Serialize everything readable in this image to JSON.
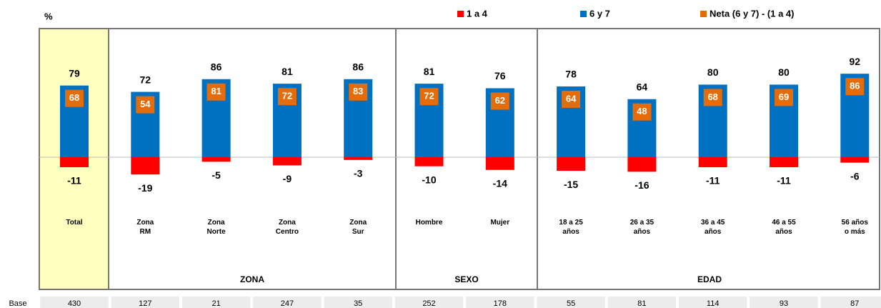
{
  "chart_data": {
    "type": "bar",
    "y_label": "%",
    "categories": [
      "Total",
      "Zona\nRM",
      "Zona\nNorte",
      "Zona\nCentro",
      "Zona\nSur",
      "Hombre",
      "Mujer",
      "18 a 25\naños",
      "26 a 35\naños",
      "36 a 45\naños",
      "46 a 55\naños",
      "56 años\no más"
    ],
    "series": [
      {
        "name": "1 a 4",
        "color": "#ff0000",
        "values": [
          -11,
          -19,
          -5,
          -9,
          -3,
          -10,
          -14,
          -15,
          -16,
          -11,
          -11,
          -6
        ]
      },
      {
        "name": "6 y 7",
        "color": "#0070c0",
        "values": [
          79,
          72,
          86,
          81,
          86,
          81,
          76,
          78,
          64,
          80,
          80,
          92
        ]
      },
      {
        "name": "Neta (6 y 7) - (1 a 4)",
        "color": "#e46c0a",
        "values": [
          68,
          54,
          81,
          72,
          83,
          72,
          62,
          64,
          48,
          68,
          69,
          86
        ]
      }
    ],
    "groups": [
      "ZONA",
      "SEXO",
      "EDAD"
    ],
    "base": {
      "label": "Base",
      "values": [
        430,
        127,
        21,
        247,
        35,
        252,
        178,
        55,
        81,
        114,
        93,
        87
      ]
    }
  }
}
